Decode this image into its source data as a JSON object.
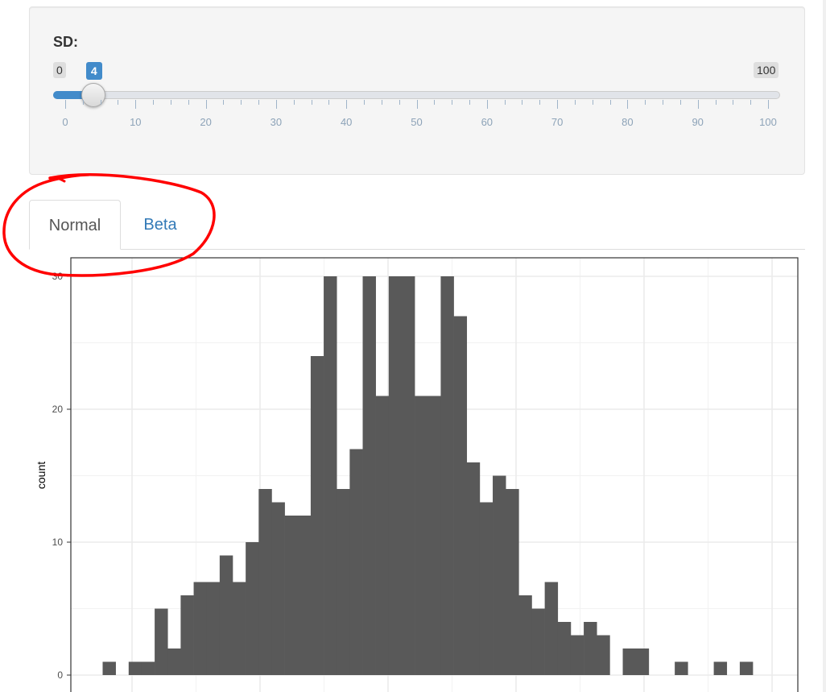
{
  "slider": {
    "label": "SD:",
    "min_label": "0",
    "max_label": "100",
    "current_label": "4",
    "value": 4,
    "min": 0,
    "max": 100,
    "ticks": [
      "0",
      "10",
      "20",
      "30",
      "40",
      "50",
      "60",
      "70",
      "80",
      "90",
      "100"
    ],
    "accent_color": "#428bca"
  },
  "tabs": [
    {
      "label": "Normal",
      "active": true
    },
    {
      "label": "Beta",
      "active": false
    }
  ],
  "chart_data": {
    "type": "bar",
    "title": "",
    "xlabel": "",
    "ylabel": "count",
    "yticks": [
      "0",
      "10",
      "20",
      "30"
    ],
    "ylim": [
      0,
      30
    ],
    "x_range": [
      37.5,
      64
    ],
    "bin_width": 0.5,
    "bin_start": 38.5,
    "values": [
      1,
      0,
      1,
      1,
      5,
      2,
      6,
      7,
      7,
      9,
      7,
      10,
      14,
      13,
      12,
      12,
      24,
      30,
      14,
      17,
      30,
      21,
      30,
      30,
      21,
      21,
      30,
      27,
      16,
      13,
      15,
      14,
      6,
      5,
      7,
      4,
      3,
      4,
      3,
      0,
      2,
      2,
      0,
      0,
      1,
      0,
      0,
      1,
      0,
      1
    ],
    "bar_color": "#595959",
    "grid": true,
    "annotation": {
      "shape": "freehand-circle",
      "color": "#ff0000",
      "target": "tabs"
    }
  }
}
